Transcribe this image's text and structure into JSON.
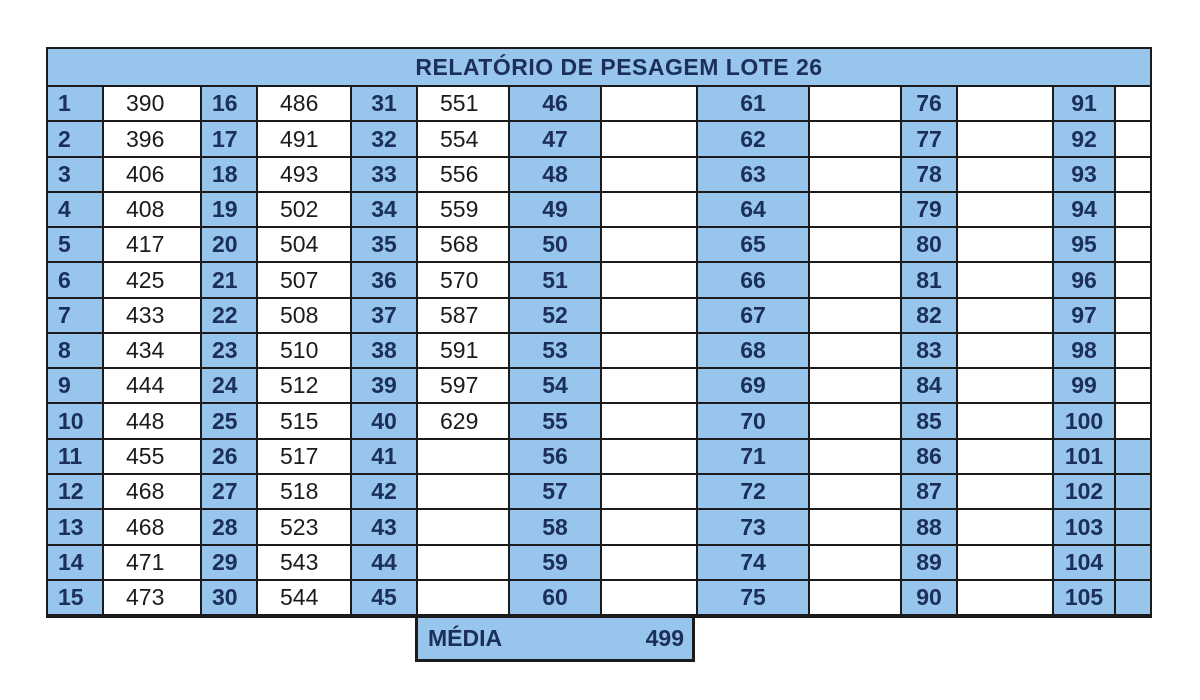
{
  "title": "RELATÓRIO DE PESAGEM LOTE  26",
  "rows": 15,
  "columns": [
    {
      "start": 1,
      "values": [
        "390",
        "396",
        "406",
        "408",
        "417",
        "425",
        "433",
        "434",
        "444",
        "448",
        "455",
        "468",
        "468",
        "471",
        "473"
      ]
    },
    {
      "start": 16,
      "values": [
        "486",
        "491",
        "493",
        "502",
        "504",
        "507",
        "508",
        "510",
        "512",
        "515",
        "517",
        "518",
        "523",
        "543",
        "544"
      ]
    },
    {
      "start": 31,
      "values": [
        "551",
        "554",
        "556",
        "559",
        "568",
        "570",
        "587",
        "591",
        "597",
        "629",
        "",
        "",
        "",
        "",
        ""
      ]
    },
    {
      "start": 46,
      "values": [
        "",
        "",
        "",
        "",
        "",
        "",
        "",
        "",
        "",
        "",
        "",
        "",
        "",
        "",
        ""
      ]
    },
    {
      "start": 61,
      "values": [
        "",
        "",
        "",
        "",
        "",
        "",
        "",
        "",
        "",
        "",
        "",
        "",
        "",
        "",
        ""
      ]
    },
    {
      "start": 76,
      "values": [
        "",
        "",
        "",
        "",
        "",
        "",
        "",
        "",
        "",
        "",
        "",
        "",
        "",
        "",
        ""
      ]
    },
    {
      "start": 91,
      "values": [
        "",
        "",
        "",
        "",
        "",
        "",
        "",
        "",
        "",
        "",
        "",
        "",
        "",
        "",
        ""
      ]
    }
  ],
  "media": {
    "label": "MÉDIA",
    "value": "499"
  },
  "colors": {
    "header_fill": "#97c5ec",
    "text_dark": "#1b2f5a",
    "border": "#1b1b1b"
  }
}
